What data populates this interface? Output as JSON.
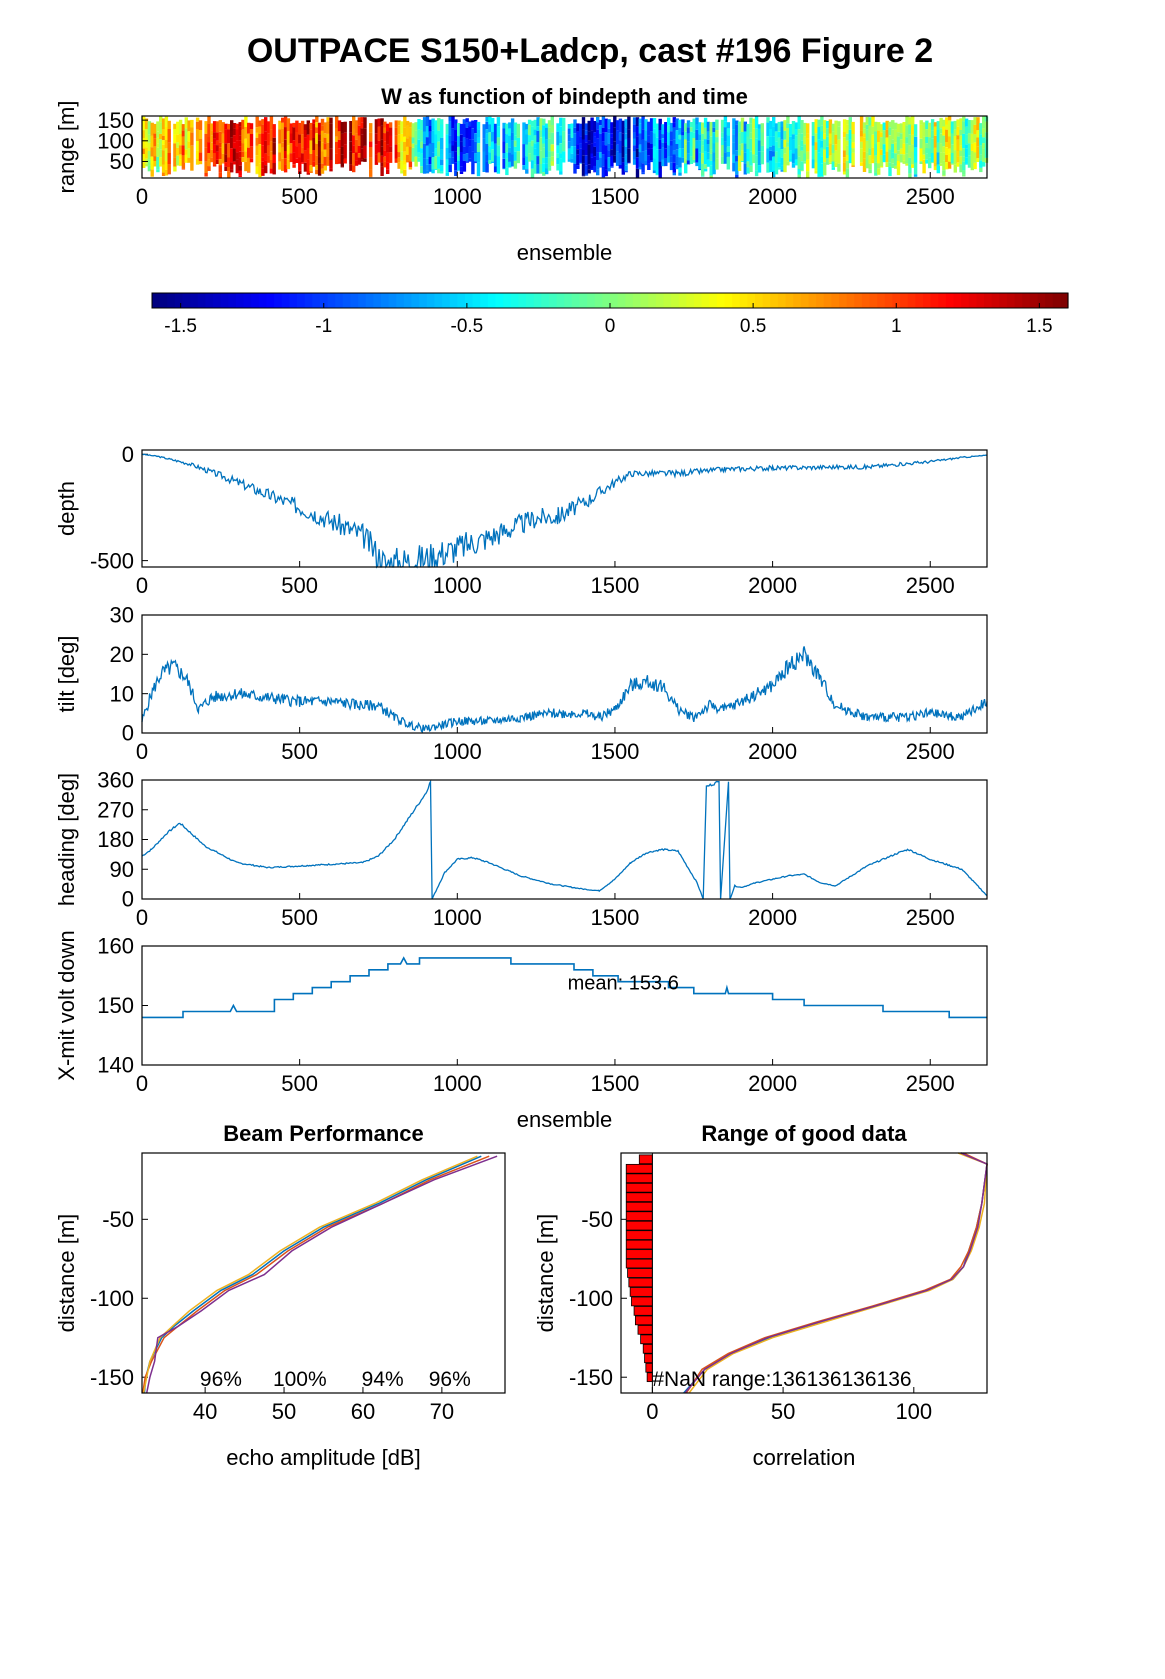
{
  "figure": {
    "title": "OUTPACE S150+Ladcp, cast #196 Figure 2"
  },
  "chart_data": [
    {
      "id": "w-panel",
      "type": "heatmap",
      "title": "W as function of bindepth and time",
      "xlabel": "ensemble",
      "ylabel": "range [m]",
      "xlim": [
        0,
        2680
      ],
      "ylim": [
        10,
        160
      ],
      "xticks": [
        "0",
        "500",
        "1000",
        "1500",
        "2000",
        "2500"
      ],
      "yticks": [
        "50",
        "100",
        "150"
      ],
      "colorbar": {
        "clim": [
          -1.6,
          1.6
        ],
        "ticks": [
          "-1.5",
          "-1",
          "-0.5",
          "0",
          "0.5",
          "1",
          "1.5"
        ]
      },
      "mean_w_by_ensemble": {
        "x": [
          0,
          100,
          200,
          300,
          400,
          500,
          600,
          700,
          800,
          900,
          1000,
          1100,
          1200,
          1300,
          1400,
          1500,
          1600,
          1700,
          1800,
          1900,
          2000,
          2100,
          2200,
          2300,
          2400,
          2500,
          2600
        ],
        "values": [
          0.2,
          0.6,
          0.9,
          1.0,
          1.0,
          0.9,
          1.2,
          1.3,
          1.1,
          -0.5,
          -0.8,
          -0.7,
          -0.5,
          -0.3,
          -1.2,
          -1.3,
          -0.9,
          -0.6,
          -0.3,
          -0.4,
          -0.2,
          0.0,
          0.1,
          0.2,
          0.1,
          0.0,
          0.1
        ]
      }
    },
    {
      "id": "depth-panel",
      "type": "line",
      "title": "",
      "xlabel": "",
      "ylabel": "depth",
      "xlim": [
        0,
        2680
      ],
      "ylim": [
        -530,
        20
      ],
      "xticks": [
        "0",
        "500",
        "1000",
        "1500",
        "2000",
        "2500"
      ],
      "yticks": [
        "0",
        "-500"
      ],
      "series": [
        {
          "x": [
            0,
            50,
            150,
            250,
            400,
            550,
            700,
            770,
            800,
            900,
            1000,
            1100,
            1250,
            1320,
            1400,
            1480,
            1550,
            1700,
            1850,
            2000,
            2200,
            2300,
            2500,
            2600,
            2680
          ],
          "values": [
            0,
            -10,
            -45,
            -100,
            -190,
            -280,
            -380,
            -515,
            -510,
            -490,
            -440,
            -390,
            -300,
            -290,
            -230,
            -150,
            -90,
            -90,
            -70,
            -65,
            -60,
            -60,
            -35,
            -15,
            -5
          ]
        }
      ]
    },
    {
      "id": "tilt-panel",
      "type": "line",
      "title": "",
      "xlabel": "",
      "ylabel": "tilt [deg]",
      "xlim": [
        0,
        2680
      ],
      "ylim": [
        0,
        30
      ],
      "xticks": [
        "0",
        "500",
        "1000",
        "1500",
        "2000",
        "2500"
      ],
      "yticks": [
        "0",
        "10",
        "20",
        "30"
      ],
      "series": [
        {
          "x": [
            0,
            30,
            60,
            100,
            140,
            180,
            220,
            300,
            400,
            500,
            600,
            700,
            750,
            800,
            850,
            900,
            950,
            1000,
            1100,
            1200,
            1300,
            1400,
            1450,
            1500,
            1550,
            1600,
            1650,
            1700,
            1750,
            1800,
            1850,
            1900,
            1950,
            2000,
            2050,
            2100,
            2150,
            2200,
            2300,
            2400,
            2500,
            2600,
            2680
          ],
          "values": [
            3,
            10,
            15,
            17,
            14,
            6,
            9,
            10,
            9,
            8,
            8,
            7,
            7,
            4,
            2,
            1,
            2,
            3,
            3,
            4,
            5,
            5,
            4,
            6,
            12,
            13,
            12,
            6,
            4,
            7,
            6,
            8,
            10,
            12,
            17,
            20,
            14,
            7,
            4,
            4,
            5,
            4,
            8
          ]
        }
      ]
    },
    {
      "id": "heading-panel",
      "type": "line",
      "title": "",
      "xlabel": "",
      "ylabel": "heading [deg]",
      "xlim": [
        0,
        2680
      ],
      "ylim": [
        0,
        360
      ],
      "xticks": [
        "0",
        "500",
        "1000",
        "1500",
        "2000",
        "2500"
      ],
      "yticks": [
        "0",
        "90",
        "180",
        "270",
        "360"
      ],
      "series": [
        {
          "x": [
            0,
            30,
            80,
            120,
            200,
            300,
            400,
            500,
            600,
            700,
            750,
            800,
            850,
            900,
            915,
            920,
            960,
            1000,
            1050,
            1100,
            1200,
            1300,
            1400,
            1450,
            1500,
            1550,
            1600,
            1650,
            1700,
            1760,
            1780,
            1790,
            1830,
            1835,
            1860,
            1865,
            1880,
            1900,
            1950,
            2050,
            2100,
            2150,
            2200,
            2300,
            2400,
            2430,
            2500,
            2600,
            2680
          ],
          "values": [
            130,
            150,
            200,
            230,
            160,
            110,
            95,
            100,
            105,
            110,
            130,
            180,
            250,
            320,
            355,
            0,
            80,
            120,
            125,
            110,
            70,
            45,
            30,
            25,
            60,
            110,
            140,
            150,
            145,
            50,
            0,
            340,
            355,
            0,
            355,
            0,
            40,
            35,
            50,
            70,
            75,
            50,
            40,
            100,
            140,
            150,
            120,
            90,
            10
          ]
        }
      ]
    },
    {
      "id": "voltage-panel",
      "type": "line",
      "title": "",
      "xlabel": "ensemble",
      "ylabel": "X-mit volt down",
      "xlim": [
        0,
        2680
      ],
      "ylim": [
        140,
        160
      ],
      "xticks": [
        "0",
        "500",
        "1000",
        "1500",
        "2000",
        "2500"
      ],
      "yticks": [
        "140",
        "150",
        "160"
      ],
      "annotation": "mean: 153.6",
      "series": [
        {
          "x": [
            0,
            130,
            130,
            280,
            290,
            300,
            420,
            420,
            480,
            480,
            540,
            540,
            600,
            600,
            660,
            660,
            720,
            720,
            780,
            780,
            820,
            830,
            840,
            880,
            880,
            1170,
            1170,
            1370,
            1370,
            1430,
            1430,
            1510,
            1510,
            1670,
            1670,
            1750,
            1750,
            1850,
            1855,
            1860,
            2000,
            2000,
            2100,
            2100,
            2350,
            2350,
            2560,
            2560,
            2680
          ],
          "values": [
            148,
            148,
            149,
            149,
            150,
            149,
            149,
            151,
            151,
            152,
            152,
            153,
            153,
            154,
            154,
            155,
            155,
            156,
            156,
            157,
            157,
            158,
            157,
            157,
            158,
            158,
            157,
            157,
            156,
            156,
            155,
            155,
            154,
            154,
            153,
            153,
            152,
            152,
            153,
            152,
            152,
            151,
            151,
            150,
            150,
            149,
            149,
            148,
            148
          ]
        }
      ]
    },
    {
      "id": "beam-panel",
      "type": "line",
      "title": "Beam Performance",
      "xlabel": "echo amplitude [dB]",
      "ylabel": "distance [m]",
      "xlim": [
        32,
        78
      ],
      "ylim": [
        -160,
        -8
      ],
      "xticks": [
        "40",
        "50",
        "60",
        "70"
      ],
      "yticks": [
        "-50",
        "-100",
        "-150"
      ],
      "beam_percentages": [
        "96%",
        "100%",
        "94%",
        "96%"
      ],
      "series": [
        {
          "y": [
            -160,
            -150,
            -140,
            -125,
            -118,
            -108,
            -95,
            -85,
            -70,
            -55,
            -40,
            -25,
            -10
          ],
          "x": [
            32.3,
            32.5,
            33,
            34.5,
            36,
            38.5,
            42,
            46,
            50,
            55,
            62,
            68,
            75
          ]
        },
        {
          "y": [
            -160,
            -150,
            -140,
            -125,
            -118,
            -108,
            -95,
            -85,
            -70,
            -55,
            -40,
            -25,
            -10
          ],
          "x": [
            32.1,
            32.4,
            33.2,
            34.8,
            36.5,
            39,
            42.5,
            46.5,
            50.5,
            55.5,
            62.5,
            68.5,
            76
          ]
        },
        {
          "y": [
            -160,
            -150,
            -140,
            -125,
            -118,
            -108,
            -95,
            -85,
            -70,
            -55,
            -40,
            -25,
            -10
          ],
          "x": [
            32.2,
            32.6,
            33,
            34.3,
            35.8,
            38,
            41.5,
            45.5,
            49.5,
            54.5,
            61.5,
            67.5,
            74.5
          ]
        },
        {
          "y": [
            -160,
            -150,
            -140,
            -125,
            -118,
            -108,
            -95,
            -85,
            -70,
            -55,
            -40,
            -25,
            -10
          ],
          "x": [
            32.6,
            33,
            33.6,
            34,
            36.5,
            39.5,
            43,
            47.5,
            51,
            56,
            62.5,
            69,
            77
          ]
        }
      ]
    },
    {
      "id": "range-panel",
      "type": "line",
      "title": "Range of good data",
      "xlabel": "correlation",
      "ylabel": "distance [m]",
      "xlim": [
        -12,
        128
      ],
      "ylim": [
        -160,
        -8
      ],
      "xticks": [
        "0",
        "50",
        "100"
      ],
      "yticks": [
        "-50",
        "-100",
        "-150"
      ],
      "annotation": "#NaN range:136136136136",
      "nan_histogram": {
        "y": [
          -12,
          -18,
          -24,
          -30,
          -36,
          -42,
          -48,
          -54,
          -60,
          -66,
          -72,
          -78,
          -84,
          -90,
          -96,
          -102,
          -108,
          -114,
          -120,
          -126,
          -132,
          -138,
          -144,
          -150
        ],
        "values": [
          -5,
          -10,
          -10,
          -10,
          -10,
          -10,
          -10,
          -10,
          -10,
          -10,
          -10,
          -10,
          -9.5,
          -9,
          -8.5,
          -8,
          -7,
          -6.5,
          -5.5,
          -4.5,
          -3.5,
          -3,
          -2.5,
          -2
        ]
      },
      "series": [
        {
          "y": [
            -160,
            -145,
            -135,
            -125,
            -115,
            -105,
            -95,
            -88,
            -80,
            -70,
            -55,
            -40,
            -15,
            -8
          ],
          "x": [
            12,
            20,
            30,
            45,
            65,
            85,
            105,
            115,
            119,
            121,
            124,
            126,
            128,
            118
          ]
        },
        {
          "y": [
            -160,
            -145,
            -135,
            -125,
            -115,
            -105,
            -95,
            -88,
            -80,
            -70,
            -55,
            -40,
            -15,
            -8
          ],
          "x": [
            13,
            19,
            29,
            43,
            63,
            84,
            104,
            114,
            118,
            121,
            124,
            126,
            128,
            119
          ]
        },
        {
          "y": [
            -160,
            -145,
            -135,
            -125,
            -115,
            -105,
            -95,
            -88,
            -80,
            -70,
            -55,
            -40,
            -15,
            -8
          ],
          "x": [
            14,
            21,
            31,
            46,
            66,
            86,
            106,
            115,
            119,
            122,
            125,
            127,
            128,
            117
          ]
        },
        {
          "y": [
            -160,
            -145,
            -135,
            -125,
            -115,
            -105,
            -95,
            -88,
            -80,
            -70,
            -55,
            -40,
            -15,
            -8
          ],
          "x": [
            12.5,
            20,
            30,
            44,
            64,
            85,
            105,
            114.5,
            119,
            121.5,
            124.5,
            126,
            128,
            118
          ]
        }
      ]
    }
  ],
  "colors": {
    "line": "#0072bd",
    "beams": [
      "#0072bd",
      "#d95319",
      "#edb120",
      "#7e2f8e"
    ],
    "nan_bars": "#ff0000"
  }
}
